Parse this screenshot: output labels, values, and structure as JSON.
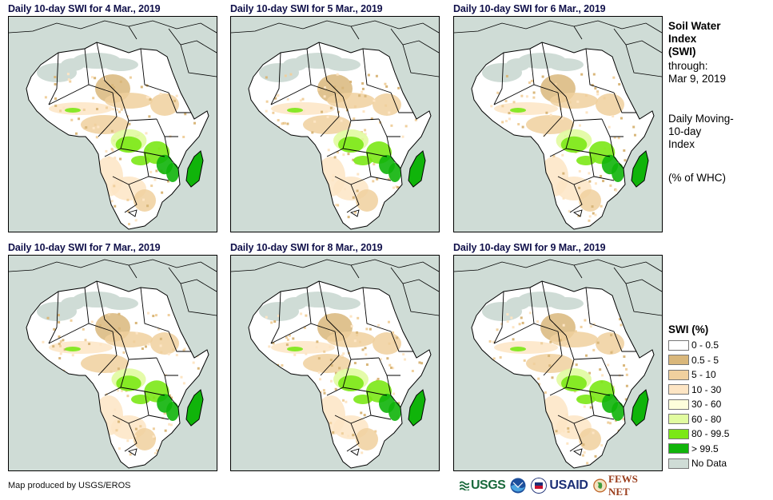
{
  "panels": [
    {
      "title": "Daily 10-day SWI for 4 Mar., 2019",
      "wet_level": 0.55
    },
    {
      "title": "Daily 10-day SWI for 5 Mar., 2019",
      "wet_level": 0.5
    },
    {
      "title": "Daily 10-day SWI for 6 Mar., 2019",
      "wet_level": 0.55
    },
    {
      "title": "Daily 10-day SWI for 7 Mar., 2019",
      "wet_level": 0.45
    },
    {
      "title": "Daily 10-day SWI for 8 Mar., 2019",
      "wet_level": 0.5
    },
    {
      "title": "Daily 10-day SWI for 9 Mar., 2019",
      "wet_level": 0.5
    }
  ],
  "info": {
    "title_line1": "Soil Water",
    "title_line2": "Index",
    "title_line3": "(SWI)",
    "through_label": "through:",
    "through_date": "Mar 9, 2019",
    "desc_line1": "Daily Moving-",
    "desc_line2": "10-day",
    "desc_line3": "Index",
    "unit": "(% of WHC)"
  },
  "legend": {
    "title": "SWI (%)",
    "items": [
      {
        "label": "0 - 0.5",
        "color": "#ffffff"
      },
      {
        "label": "0.5 - 5",
        "color": "#d9b77b"
      },
      {
        "label": "5 - 10",
        "color": "#f0d09e"
      },
      {
        "label": "10 - 30",
        "color": "#fde5c4"
      },
      {
        "label": "30 - 60",
        "color": "#fdfedb"
      },
      {
        "label": "60 - 80",
        "color": "#e1fba0"
      },
      {
        "label": "80 - 99.5",
        "color": "#7be816"
      },
      {
        "label": "> 99.5",
        "color": "#10b40a"
      },
      {
        "label": "No Data",
        "color": "#cfdcd6"
      }
    ]
  },
  "credit": "Map produced by USGS/EROS",
  "logos": {
    "usgs": "USGS",
    "usaid": "USAID",
    "fews": "FEWS NET"
  }
}
